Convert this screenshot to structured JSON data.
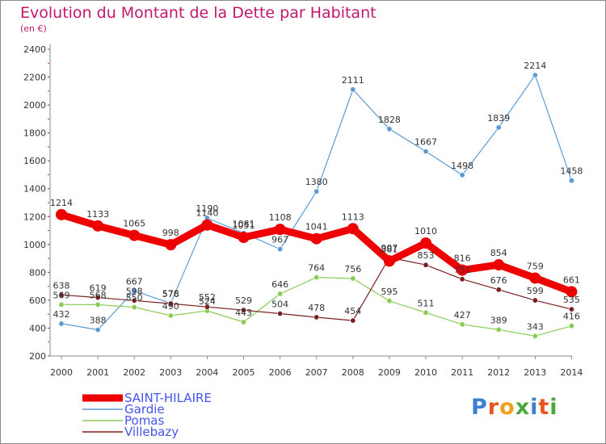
{
  "header": {
    "title": "Evolution du Montant de la Dette par Habitant",
    "unit": "(en €)"
  },
  "logo": {
    "text": "Proxiti",
    "colors": [
      "#3a7fd0",
      "#e8541a",
      "#f0a01a",
      "#4aa83c",
      "#3a7fd0",
      "#e8541a",
      "#4aa83c"
    ]
  },
  "chart_data": {
    "type": "line",
    "x": [
      "2000",
      "2001",
      "2002",
      "2003",
      "2004",
      "2005",
      "2006",
      "2007",
      "2008",
      "2009",
      "2010",
      "2011",
      "2012",
      "2013",
      "2014"
    ],
    "ylim": [
      200,
      2400
    ],
    "yticks": [
      200,
      400,
      600,
      800,
      1000,
      1200,
      1400,
      1600,
      1800,
      2000,
      2200,
      2400
    ],
    "grid": false,
    "legend_position": "bottom-left",
    "series": [
      {
        "name": "SAINT-HILAIRE",
        "color": "#ee0000",
        "width": 9,
        "marker": 7,
        "values": [
          1214,
          1133,
          1065,
          998,
          1140,
          1051,
          1108,
          1041,
          1113,
          881,
          1010,
          816,
          854,
          759,
          661
        ],
        "labels": [
          "1214",
          "1133",
          "1065",
          "998",
          "1140",
          "1051",
          "1108",
          "1041",
          "1113",
          "881",
          "1010",
          "816",
          "854",
          "759",
          "661"
        ]
      },
      {
        "name": "Gardie",
        "color": "#5b9bd5",
        "width": 1.2,
        "marker": 3.2,
        "values": [
          432,
          388,
          667,
          578,
          1190,
          1081,
          967,
          1380,
          2111,
          1828,
          1667,
          1498,
          1839,
          2214,
          1458
        ],
        "labels": [
          "432",
          "388",
          "667",
          "578",
          "1190",
          "1081",
          "967",
          "1380",
          "2111",
          "1828",
          "1667",
          "1498",
          "1839",
          "2214",
          "1458"
        ]
      },
      {
        "name": "Pomas",
        "color": "#88cc55",
        "width": 1.2,
        "marker": 3.2,
        "values": [
          569,
          568,
          550,
          490,
          524,
          443,
          646,
          764,
          756,
          595,
          511,
          427,
          389,
          343,
          416
        ],
        "labels": [
          "569",
          "568",
          "550",
          "490",
          "524",
          "443",
          "646",
          "764",
          "756",
          "595",
          "511",
          "427",
          "389",
          "343",
          "416"
        ]
      },
      {
        "name": "Villebazy",
        "color": "#7a1f1f",
        "width": 1.2,
        "marker": 3.2,
        "values": [
          638,
          619,
          598,
          576,
          552,
          529,
          504,
          478,
          454,
          907,
          853,
          751,
          676,
          599,
          535
        ],
        "labels": [
          "638",
          "619",
          "598",
          "576",
          "552",
          "529",
          "504",
          "478",
          "454",
          "907",
          "853",
          "751",
          "676",
          "599",
          "535"
        ]
      }
    ]
  }
}
